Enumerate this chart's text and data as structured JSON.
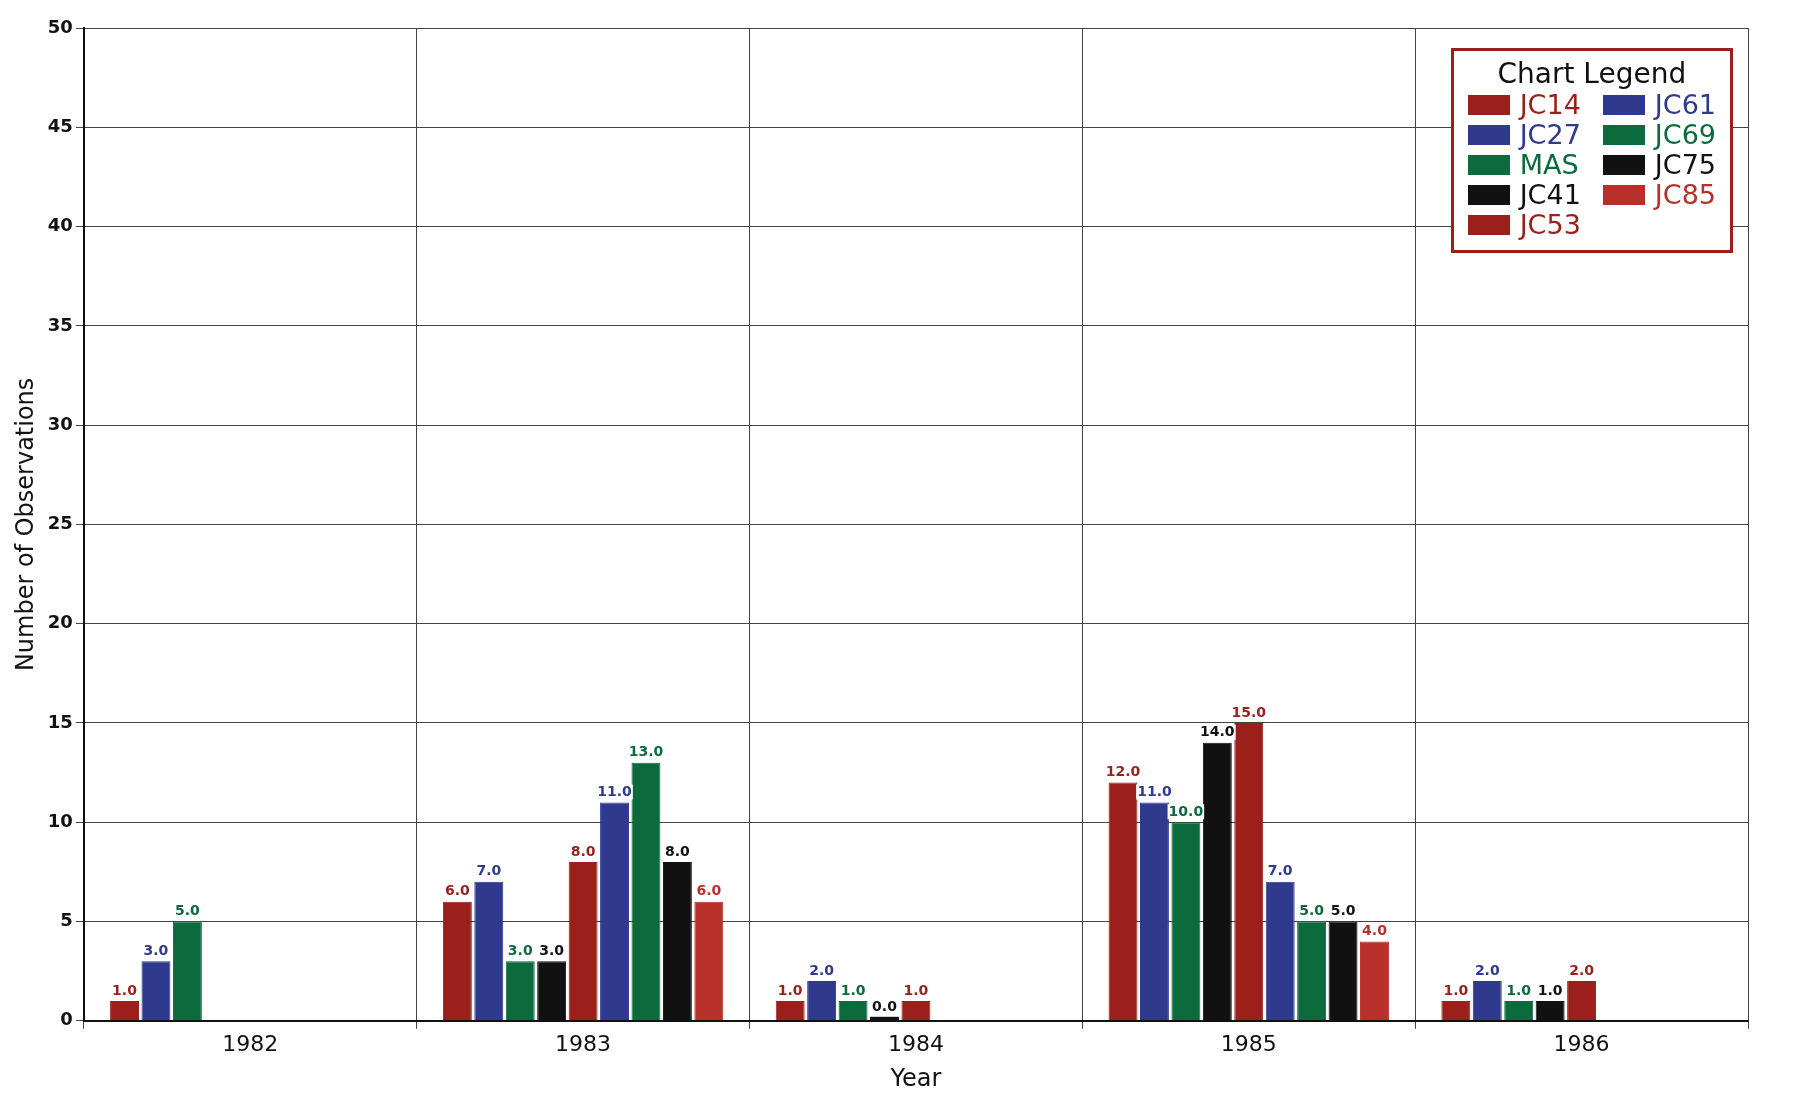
{
  "chart_data": {
    "type": "bar",
    "xlabel": "Year",
    "ylabel": "Number of Observations",
    "legend_title": "Chart Legend",
    "legend": "top right",
    "grid": true,
    "categories": [
      "1982",
      "1983",
      "1984",
      "1985",
      "1986"
    ],
    "ylim": [
      0,
      50
    ],
    "yticks": [
      0,
      5,
      10,
      15,
      20,
      25,
      30,
      35,
      40,
      45,
      50
    ],
    "series": [
      {
        "name": "JC14",
        "color": "#9b1f1a",
        "values": [
          1,
          6,
          1,
          12,
          1
        ],
        "value_labels": [
          "1.0",
          "6.0",
          "1.0",
          "12.0",
          "1.0"
        ]
      },
      {
        "name": "JC27",
        "color": "#2f3a8f",
        "values": [
          3,
          7,
          2,
          11,
          2
        ],
        "value_labels": [
          "3.0",
          "7.0",
          "2.0",
          "11.0",
          "2.0"
        ]
      },
      {
        "name": "MAS",
        "color": "#0c6b3c",
        "values": [
          5,
          3,
          1,
          10,
          1
        ],
        "value_labels": [
          "5.0",
          "3.0",
          "1.0",
          "10.0",
          "1.0"
        ]
      },
      {
        "name": "JC41",
        "color": "#111111",
        "values": [
          null,
          3,
          0,
          14,
          1
        ],
        "value_labels": [
          null,
          "3.0",
          "0.0",
          "14.0",
          "1.0"
        ]
      },
      {
        "name": "JC53",
        "color": "#9b1f1a",
        "values": [
          null,
          8,
          1,
          15,
          2
        ],
        "value_labels": [
          null,
          "8.0",
          "1.0",
          "15.0",
          "2.0"
        ]
      },
      {
        "name": "JC61",
        "color": "#2f3a8f",
        "values": [
          null,
          11,
          null,
          7,
          null
        ],
        "value_labels": [
          null,
          "11.0",
          null,
          "7.0",
          null
        ]
      },
      {
        "name": "JC69",
        "color": "#0c6b3c",
        "values": [
          null,
          13,
          null,
          5,
          null
        ],
        "value_labels": [
          null,
          "13.0",
          null,
          "5.0",
          null
        ]
      },
      {
        "name": "JC75",
        "color": "#111111",
        "values": [
          null,
          8,
          null,
          5,
          null
        ],
        "value_labels": [
          null,
          "8.0",
          null,
          "5.0",
          null
        ]
      },
      {
        "name": "JC85",
        "color": "#b8302a",
        "values": [
          null,
          6,
          null,
          4,
          null
        ],
        "value_labels": [
          null,
          "6.0",
          null,
          "4.0",
          null
        ]
      }
    ]
  }
}
